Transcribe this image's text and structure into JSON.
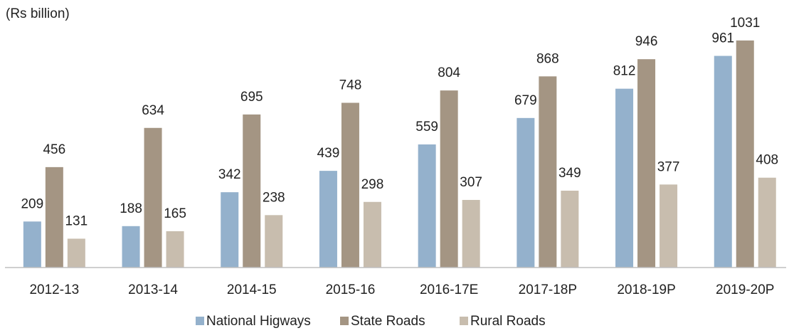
{
  "chart_data": {
    "type": "bar",
    "title": "(Rs billion)",
    "categories": [
      "2012-13",
      "2013-14",
      "2014-15",
      "2015-16",
      "2016-17E",
      "2017-18P",
      "2018-19P",
      "2019-20P"
    ],
    "series": [
      {
        "name": "National Higways",
        "color": "#94b1cc",
        "values": [
          209,
          188,
          342,
          439,
          559,
          679,
          812,
          961
        ]
      },
      {
        "name": "State Roads",
        "color": "#a49583",
        "values": [
          456,
          634,
          695,
          748,
          804,
          868,
          946,
          1031
        ]
      },
      {
        "name": "Rural Roads",
        "color": "#c8bdae",
        "values": [
          131,
          165,
          238,
          298,
          307,
          349,
          377,
          408
        ]
      }
    ],
    "ylim": [
      0,
      1050
    ]
  }
}
